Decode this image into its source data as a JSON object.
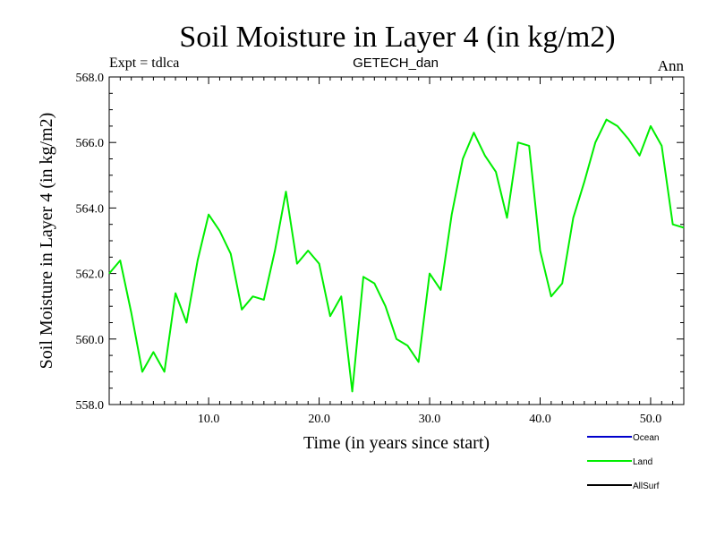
{
  "chart_data": {
    "type": "line",
    "title": "Soil Moisture in Layer 4 (in kg/m2)",
    "subtitle_left": "Expt = tdlca",
    "subtitle_center": "GETECH_dan",
    "subtitle_right": "Ann",
    "xlabel": "Time (in years since start)",
    "ylabel": "Soil Moisture in Layer 4 (in kg/m2)",
    "xlim": [
      1,
      53
    ],
    "ylim": [
      558.0,
      568.0
    ],
    "xticks": [
      10,
      20,
      30,
      40,
      50
    ],
    "xtick_labels": [
      "10.0",
      "20.0",
      "30.0",
      "40.0",
      "50.0"
    ],
    "yticks": [
      558,
      560,
      562,
      564,
      566,
      568
    ],
    "ytick_labels": [
      "558.0",
      "560.0",
      "562.0",
      "564.0",
      "566.0",
      "568.0"
    ],
    "legend_position": "bottom-right",
    "series": [
      {
        "name": "Ocean",
        "color": "#0000cc",
        "x": [],
        "values": []
      },
      {
        "name": "Land",
        "color": "#00ee00",
        "x": [
          1,
          2,
          3,
          4,
          5,
          6,
          7,
          8,
          9,
          10,
          11,
          12,
          13,
          14,
          15,
          16,
          17,
          18,
          19,
          20,
          21,
          22,
          23,
          24,
          25,
          26,
          27,
          28,
          29,
          30,
          31,
          32,
          33,
          34,
          35,
          36,
          37,
          38,
          39,
          40,
          41,
          42,
          43,
          44,
          45,
          46,
          47,
          48,
          49,
          50,
          51,
          52,
          53
        ],
        "values": [
          562.0,
          562.4,
          560.8,
          559.0,
          559.6,
          559.0,
          561.4,
          560.5,
          562.4,
          563.8,
          563.3,
          562.6,
          560.9,
          561.3,
          561.2,
          562.7,
          564.5,
          562.3,
          562.7,
          562.3,
          560.7,
          561.3,
          558.4,
          561.9,
          561.7,
          561.0,
          560.0,
          559.8,
          559.3,
          562.0,
          561.5,
          563.8,
          565.5,
          566.3,
          565.6,
          565.1,
          563.7,
          566.0,
          565.9,
          562.7,
          561.3,
          561.7,
          563.7,
          564.8,
          566.0,
          566.7,
          566.5,
          566.1,
          565.6,
          566.5,
          565.9,
          563.5,
          563.4
        ]
      },
      {
        "name": "AllSurf",
        "color": "#000000",
        "x": [],
        "values": []
      }
    ]
  }
}
